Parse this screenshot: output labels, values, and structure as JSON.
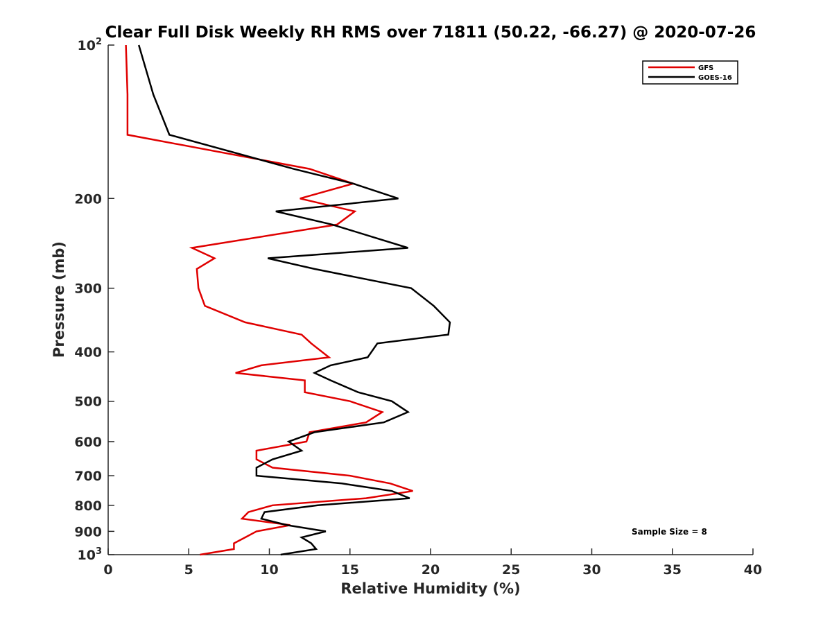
{
  "chart_data": {
    "type": "line",
    "title": "Clear Full Disk Weekly RH RMS over 71811 (50.22, -66.27) @ 2020-07-26",
    "xlabel": "Relative Humidity (%)",
    "ylabel": "Pressure (mb)",
    "xlim": [
      0,
      40
    ],
    "ylim": [
      100,
      1000
    ],
    "y_scale": "log",
    "y_reversed": true,
    "x_ticks": [
      "0",
      "5",
      "10",
      "15",
      "20",
      "25",
      "30",
      "35",
      "40"
    ],
    "y_ticks": [
      {
        "value": 100,
        "label": "10",
        "sup": "2"
      },
      {
        "value": 200,
        "label": "200",
        "sup": ""
      },
      {
        "value": 300,
        "label": "300",
        "sup": ""
      },
      {
        "value": 400,
        "label": "400",
        "sup": ""
      },
      {
        "value": 500,
        "label": "500",
        "sup": ""
      },
      {
        "value": 600,
        "label": "600",
        "sup": ""
      },
      {
        "value": 700,
        "label": "700",
        "sup": ""
      },
      {
        "value": 800,
        "label": "800",
        "sup": ""
      },
      {
        "value": 900,
        "label": "900",
        "sup": ""
      },
      {
        "value": 1000,
        "label": "10",
        "sup": "3"
      }
    ],
    "grid": false,
    "legend_position": "top-right",
    "annotation": "Sample Size = 8",
    "series": [
      {
        "name": "GFS",
        "color": "#e00000",
        "points": [
          [
            1.1,
            100
          ],
          [
            1.2,
            125
          ],
          [
            1.2,
            150
          ],
          [
            12.5,
            175
          ],
          [
            15.2,
            187
          ],
          [
            11.9,
            200
          ],
          [
            15.3,
            212
          ],
          [
            14.2,
            225
          ],
          [
            5.2,
            250
          ],
          [
            6.6,
            262
          ],
          [
            5.5,
            275
          ],
          [
            5.6,
            300
          ],
          [
            6.0,
            325
          ],
          [
            8.5,
            350
          ],
          [
            12.0,
            370
          ],
          [
            12.6,
            385
          ],
          [
            13.7,
            410
          ],
          [
            9.5,
            425
          ],
          [
            7.9,
            440
          ],
          [
            12.2,
            455
          ],
          [
            12.2,
            480
          ],
          [
            15.0,
            500
          ],
          [
            17.0,
            525
          ],
          [
            16.0,
            550
          ],
          [
            12.5,
            575
          ],
          [
            12.3,
            600
          ],
          [
            9.2,
            625
          ],
          [
            9.2,
            650
          ],
          [
            10.2,
            675
          ],
          [
            15.0,
            700
          ],
          [
            17.5,
            725
          ],
          [
            18.9,
            750
          ],
          [
            16.0,
            775
          ],
          [
            10.2,
            800
          ],
          [
            8.7,
            825
          ],
          [
            8.3,
            850
          ],
          [
            11.3,
            875
          ],
          [
            9.2,
            900
          ],
          [
            8.5,
            925
          ],
          [
            7.8,
            950
          ],
          [
            7.8,
            975
          ],
          [
            5.7,
            1000
          ]
        ]
      },
      {
        "name": "GOES-16",
        "color": "#000000",
        "points": [
          [
            1.9,
            100
          ],
          [
            2.8,
            125
          ],
          [
            3.8,
            150
          ],
          [
            11.5,
            175
          ],
          [
            15.2,
            187
          ],
          [
            18.0,
            200
          ],
          [
            10.4,
            212
          ],
          [
            13.9,
            225
          ],
          [
            18.6,
            250
          ],
          [
            9.9,
            262
          ],
          [
            12.8,
            275
          ],
          [
            18.8,
            300
          ],
          [
            20.2,
            325
          ],
          [
            21.2,
            350
          ],
          [
            21.1,
            370
          ],
          [
            16.7,
            385
          ],
          [
            16.1,
            410
          ],
          [
            13.8,
            425
          ],
          [
            12.8,
            440
          ],
          [
            13.8,
            455
          ],
          [
            15.5,
            480
          ],
          [
            17.6,
            500
          ],
          [
            18.6,
            525
          ],
          [
            17.1,
            550
          ],
          [
            12.8,
            575
          ],
          [
            11.2,
            600
          ],
          [
            12.0,
            625
          ],
          [
            10.2,
            650
          ],
          [
            9.2,
            675
          ],
          [
            9.2,
            700
          ],
          [
            14.5,
            725
          ],
          [
            17.6,
            750
          ],
          [
            18.7,
            775
          ],
          [
            13.0,
            800
          ],
          [
            9.7,
            825
          ],
          [
            9.5,
            850
          ],
          [
            11.1,
            875
          ],
          [
            13.5,
            900
          ],
          [
            12.0,
            925
          ],
          [
            12.6,
            950
          ],
          [
            12.9,
            975
          ],
          [
            10.7,
            1000
          ]
        ]
      }
    ]
  }
}
